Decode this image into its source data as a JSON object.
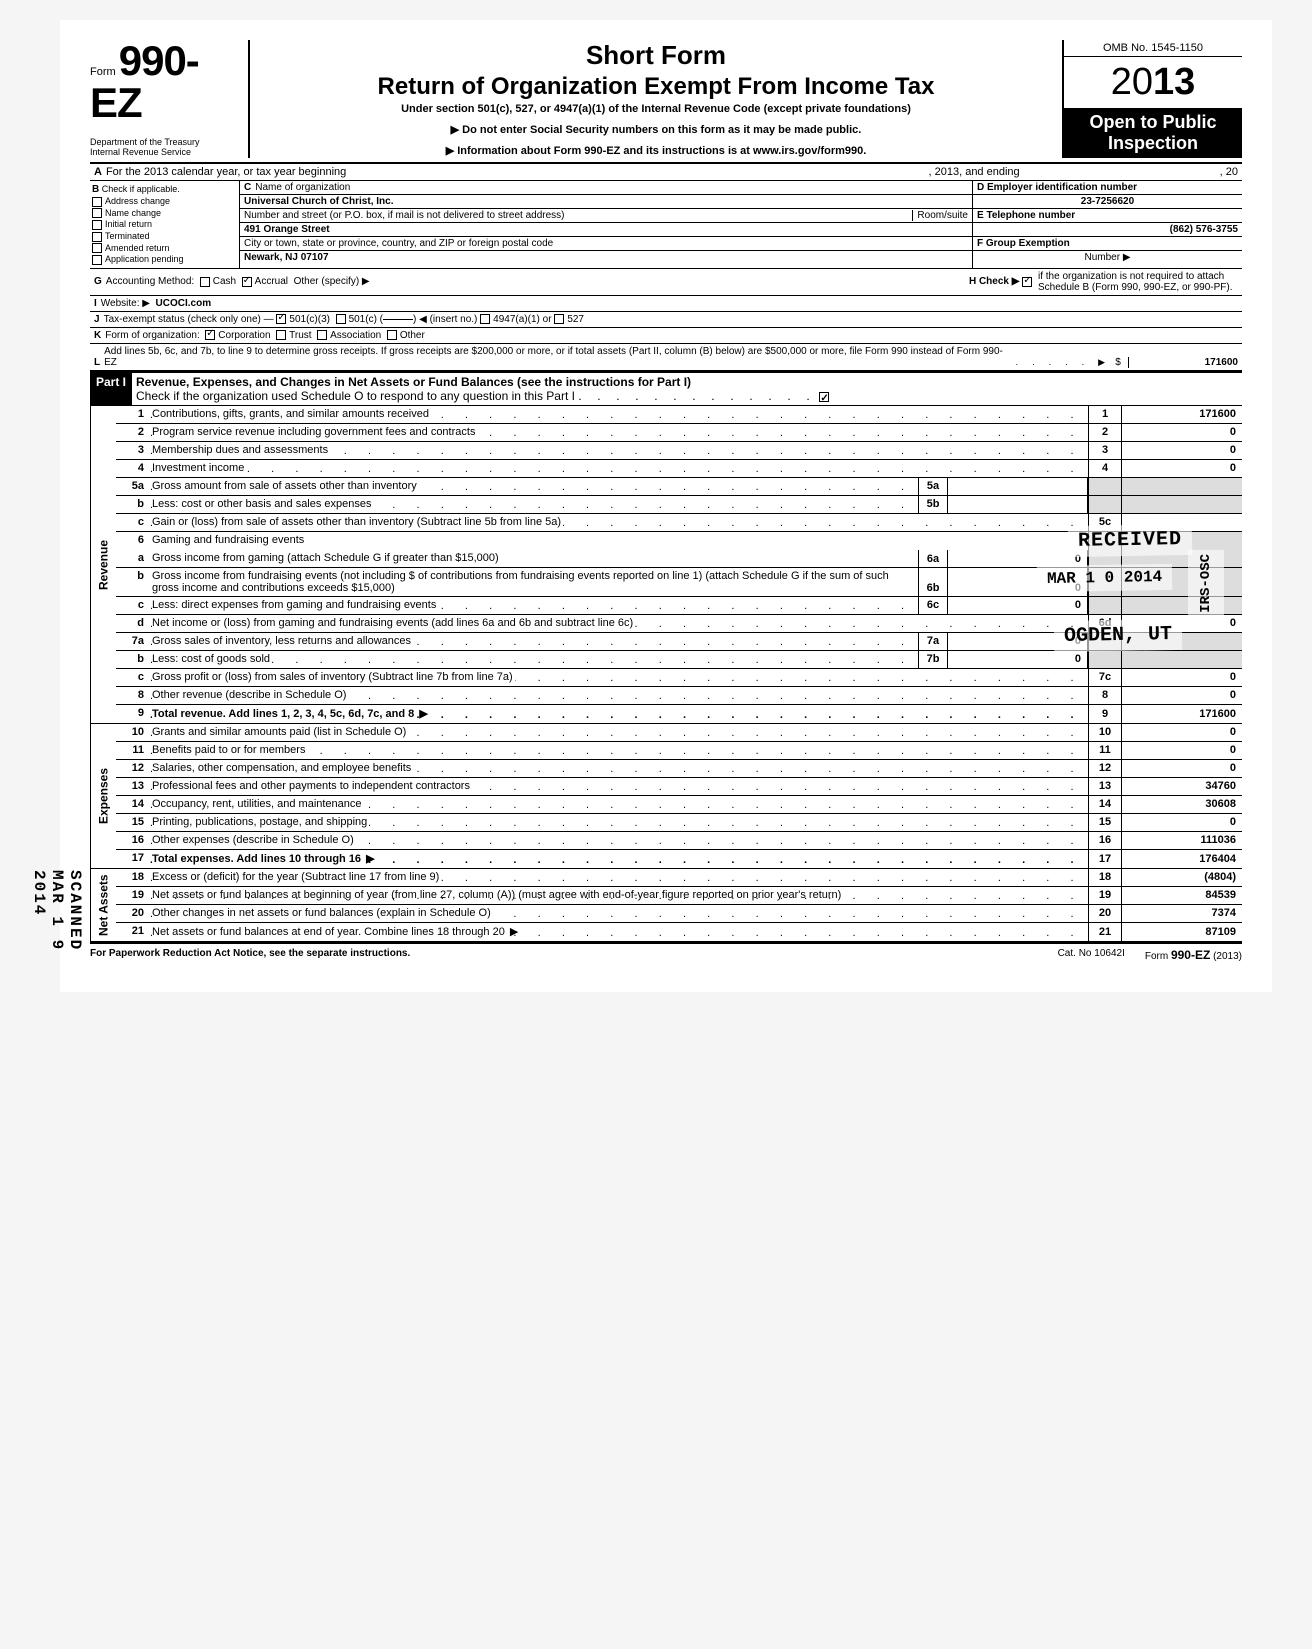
{
  "form": {
    "number_prefix": "Form",
    "number": "990-EZ",
    "dept1": "Department of the Treasury",
    "dept2": "Internal Revenue Service",
    "title1": "Short Form",
    "title2": "Return of Organization Exempt From Income Tax",
    "subtitle": "Under section 501(c), 527, or 4947(a)(1) of the Internal Revenue Code (except private foundations)",
    "note1": "▶ Do not enter Social Security numbers on this form as it may be made public.",
    "note2": "▶ Information about Form 990-EZ and its instructions is at www.irs.gov/form990.",
    "omb": "OMB No. 1545-1150",
    "year_light": "20",
    "year_bold": "13",
    "open": "Open to Public Inspection"
  },
  "A": {
    "label": "A",
    "text": "For the 2013 calendar year, or tax year beginning",
    "mid": ", 2013, and ending",
    "end": ", 20"
  },
  "B": {
    "label": "B",
    "text": "Check if applicable.",
    "opts": [
      "Address change",
      "Name change",
      "Initial return",
      "Terminated",
      "Amended return",
      "Application pending"
    ]
  },
  "C": {
    "label": "C",
    "name_lbl": "Name of organization",
    "name": "Universal Church of Christ, Inc.",
    "street_lbl": "Number and street (or P.O. box, if mail is not delivered to street address)",
    "room_lbl": "Room/suite",
    "street": "491 Orange Street",
    "city_lbl": "City or town, state or province, country, and ZIP or foreign postal code",
    "city": "Newark, NJ  07107"
  },
  "D": {
    "label": "D Employer identification number",
    "val": "23-7256620"
  },
  "E": {
    "label": "E Telephone number",
    "val": "(862) 576-3755"
  },
  "F": {
    "label": "F Group Exemption",
    "sub": "Number ▶",
    "val": ""
  },
  "G": {
    "label": "G",
    "text": "Accounting Method:",
    "cash": "Cash",
    "accrual": "Accrual",
    "other": "Other (specify) ▶"
  },
  "H": {
    "text": "H  Check ▶",
    "rest": "if the organization is not required to attach Schedule B (Form 990, 990-EZ, or 990-PF)."
  },
  "I": {
    "label": "I",
    "text": "Website: ▶",
    "val": "UCOCI.com"
  },
  "J": {
    "label": "J",
    "text": "Tax-exempt status (check only one) —",
    "a": "501(c)(3)",
    "b": "501(c) (",
    "c": ") ◀ (insert no.)",
    "d": "4947(a)(1) or",
    "e": "527"
  },
  "K": {
    "label": "K",
    "text": "Form of organization:",
    "corp": "Corporation",
    "trust": "Trust",
    "assoc": "Association",
    "other": "Other"
  },
  "L": {
    "label": "L",
    "text": "Add lines 5b, 6c, and 7b, to line 9 to determine gross receipts. If gross receipts are $200,000 or more, or if total assets (Part II, column (B) below) are $500,000 or more, file Form 990 instead of Form 990-EZ",
    "val": "171600"
  },
  "part1": {
    "label": "Part I",
    "title": "Revenue, Expenses, and Changes in Net Assets or Fund Balances (see the instructions for Part I)",
    "check": "Check if the organization used Schedule O to respond to any question in this Part I"
  },
  "sections": {
    "revenue": "Revenue",
    "expenses": "Expenses",
    "netassets": "Net Assets"
  },
  "lines": {
    "1": {
      "n": "1",
      "t": "Contributions, gifts, grants, and similar amounts received",
      "bn": "1",
      "v": "171600"
    },
    "2": {
      "n": "2",
      "t": "Program service revenue including government fees and contracts",
      "bn": "2",
      "v": "0"
    },
    "3": {
      "n": "3",
      "t": "Membership dues and assessments",
      "bn": "3",
      "v": "0"
    },
    "4": {
      "n": "4",
      "t": "Investment income",
      "bn": "4",
      "v": "0"
    },
    "5a": {
      "n": "5a",
      "t": "Gross amount from sale of assets other than inventory",
      "mn": "5a",
      "mv": ""
    },
    "5b": {
      "n": "b",
      "t": "Less: cost or other basis and sales expenses",
      "mn": "5b",
      "mv": ""
    },
    "5c": {
      "n": "c",
      "t": "Gain or (loss) from sale of assets other than inventory (Subtract line 5b from line 5a)",
      "bn": "5c",
      "v": ""
    },
    "6": {
      "n": "6",
      "t": "Gaming and fundraising events"
    },
    "6a": {
      "n": "a",
      "t": "Gross income from gaming (attach Schedule G if greater than $15,000)",
      "mn": "6a",
      "mv": "0"
    },
    "6b": {
      "n": "b",
      "t": "Gross income from fundraising events (not including  $                       of contributions from fundraising events reported on line 1) (attach Schedule G if the sum of such gross income and contributions exceeds $15,000)",
      "mn": "6b",
      "mv": "0"
    },
    "6c": {
      "n": "c",
      "t": "Less: direct expenses from gaming and fundraising events",
      "mn": "6c",
      "mv": "0"
    },
    "6d": {
      "n": "d",
      "t": "Net income or (loss) from gaming and fundraising events (add lines 6a and 6b and subtract line 6c)",
      "bn": "6d",
      "v": "0"
    },
    "7a": {
      "n": "7a",
      "t": "Gross sales of inventory, less returns and allowances",
      "mn": "7a",
      "mv": "0"
    },
    "7b": {
      "n": "b",
      "t": "Less: cost of goods sold",
      "mn": "7b",
      "mv": "0"
    },
    "7c": {
      "n": "c",
      "t": "Gross profit or (loss) from sales of inventory (Subtract line 7b from line 7a)",
      "bn": "7c",
      "v": "0"
    },
    "8": {
      "n": "8",
      "t": "Other revenue (describe in Schedule O)",
      "bn": "8",
      "v": "0"
    },
    "9": {
      "n": "9",
      "t": "Total revenue. Add lines 1, 2, 3, 4, 5c, 6d, 7c, and 8",
      "bn": "9",
      "v": "171600",
      "bold": true
    },
    "10": {
      "n": "10",
      "t": "Grants and similar amounts paid (list in Schedule O)",
      "bn": "10",
      "v": "0"
    },
    "11": {
      "n": "11",
      "t": "Benefits paid to or for members",
      "bn": "11",
      "v": "0"
    },
    "12": {
      "n": "12",
      "t": "Salaries, other compensation, and employee benefits",
      "bn": "12",
      "v": "0"
    },
    "13": {
      "n": "13",
      "t": "Professional fees and other payments to independent contractors",
      "bn": "13",
      "v": "34760"
    },
    "14": {
      "n": "14",
      "t": "Occupancy, rent, utilities, and maintenance",
      "bn": "14",
      "v": "30608"
    },
    "15": {
      "n": "15",
      "t": "Printing, publications, postage, and shipping",
      "bn": "15",
      "v": "0"
    },
    "16": {
      "n": "16",
      "t": "Other expenses (describe in Schedule O)",
      "bn": "16",
      "v": "111036"
    },
    "17": {
      "n": "17",
      "t": "Total expenses. Add lines 10 through 16",
      "bn": "17",
      "v": "176404",
      "bold": true
    },
    "18": {
      "n": "18",
      "t": "Excess or (deficit) for the year (Subtract line 17 from line 9)",
      "bn": "18",
      "v": "(4804)"
    },
    "19": {
      "n": "19",
      "t": "Net assets or fund balances at beginning of year (from line 27, column (A)) (must agree with end-of-year figure reported on prior year's return)",
      "bn": "19",
      "v": "84539"
    },
    "20": {
      "n": "20",
      "t": "Other changes in net assets or fund balances (explain in Schedule O)",
      "bn": "20",
      "v": "7374"
    },
    "21": {
      "n": "21",
      "t": "Net assets or fund balances at end of year. Combine lines 18 through 20",
      "bn": "21",
      "v": "87109"
    }
  },
  "footer": {
    "left": "For Paperwork Reduction Act Notice, see the separate instructions.",
    "cat": "Cat. No 10642I",
    "right": "Form 990-EZ (2013)"
  },
  "stamps": {
    "received": "RECEIVED",
    "date": "MAR 1 0 2014",
    "ogden": "OGDEN, UT",
    "irs": "IRS-OSC",
    "scanned": "SCANNED MAR 1 9 2014"
  }
}
